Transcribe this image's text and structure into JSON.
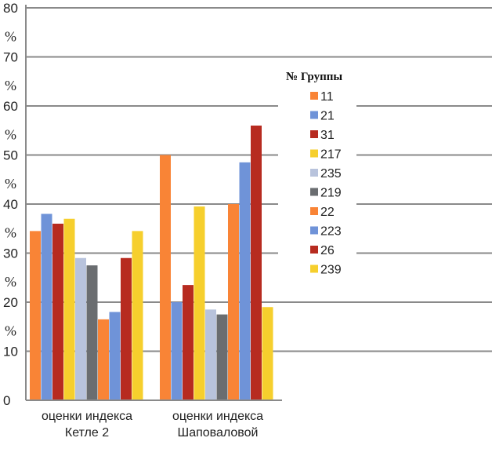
{
  "chart_data": {
    "type": "bar",
    "categories": [
      "оценки индекса Кетле 2",
      "оценки индекса Шаповаловой"
    ],
    "category_lines": [
      [
        "оценки индекса",
        "Кетле 2"
      ],
      [
        "оценки индекса",
        "Шаповаловой"
      ]
    ],
    "ylim": [
      0,
      80
    ],
    "yticks": [
      0,
      10,
      20,
      30,
      40,
      50,
      60,
      70,
      80
    ],
    "ytick_labels": [
      "0",
      "10",
      "20",
      "30",
      "40",
      "50",
      "60",
      "70",
      "80"
    ],
    "percent_sign": "%",
    "legend_title": "№ Группы",
    "legend_position": "right",
    "grid": true,
    "series": [
      {
        "name": "11",
        "color": "#f98436",
        "values": [
          34.5,
          50
        ]
      },
      {
        "name": "21",
        "color": "#6f93d8",
        "values": [
          38,
          20
        ]
      },
      {
        "name": "31",
        "color": "#b72b20",
        "values": [
          36,
          23.5
        ]
      },
      {
        "name": "217",
        "color": "#f6cf2d",
        "values": [
          37,
          39.5
        ]
      },
      {
        "name": "235",
        "color": "#b8c3dc",
        "values": [
          29,
          18.5
        ]
      },
      {
        "name": "219",
        "color": "#6a6d70",
        "values": [
          27.5,
          17.5
        ]
      },
      {
        "name": "22",
        "color": "#f98436",
        "values": [
          16.5,
          40
        ]
      },
      {
        "name": "223",
        "color": "#6f93d8",
        "values": [
          18,
          48.5
        ]
      },
      {
        "name": "26",
        "color": "#b72b20",
        "values": [
          29,
          56
        ]
      },
      {
        "name": "239",
        "color": "#f6cf2d",
        "values": [
          34.5,
          19
        ]
      }
    ]
  }
}
